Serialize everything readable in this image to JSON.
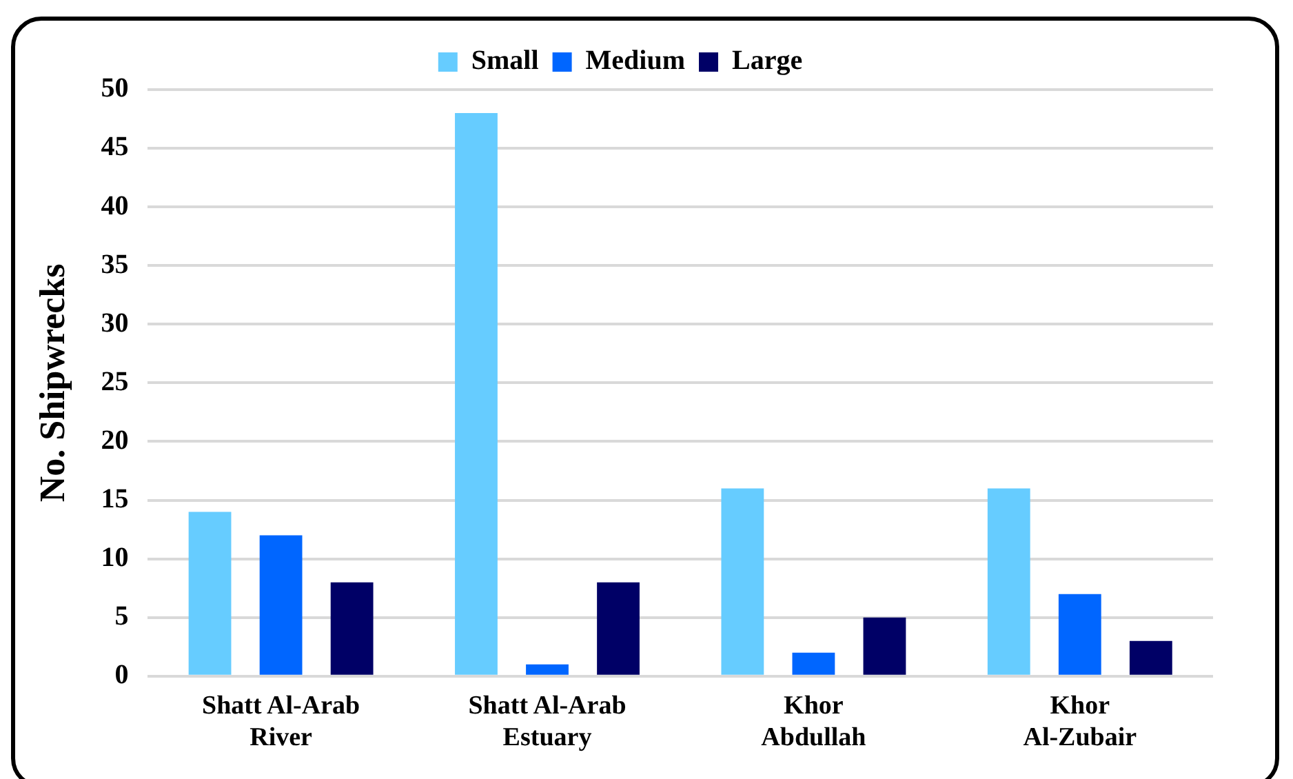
{
  "chart_data": {
    "type": "bar",
    "ylabel": "No. Shipwrecks",
    "categories": [
      "Shatt Al-Arab River",
      "Shatt Al-Arab Estuary",
      "Khor Abdullah",
      "Khor Al-Zubair"
    ],
    "series": [
      {
        "name": "Small",
        "color": "#66ccff",
        "values": [
          14,
          48,
          16,
          16
        ]
      },
      {
        "name": "Medium",
        "color": "#0066ff",
        "values": [
          12,
          1,
          2,
          7
        ]
      },
      {
        "name": "Large",
        "color": "#000066",
        "values": [
          8,
          8,
          5,
          3
        ]
      }
    ],
    "ylim": [
      0,
      50
    ],
    "yticks": [
      0,
      5,
      10,
      15,
      20,
      25,
      30,
      35,
      40,
      45,
      50
    ],
    "grid": "y",
    "legend": "top"
  }
}
